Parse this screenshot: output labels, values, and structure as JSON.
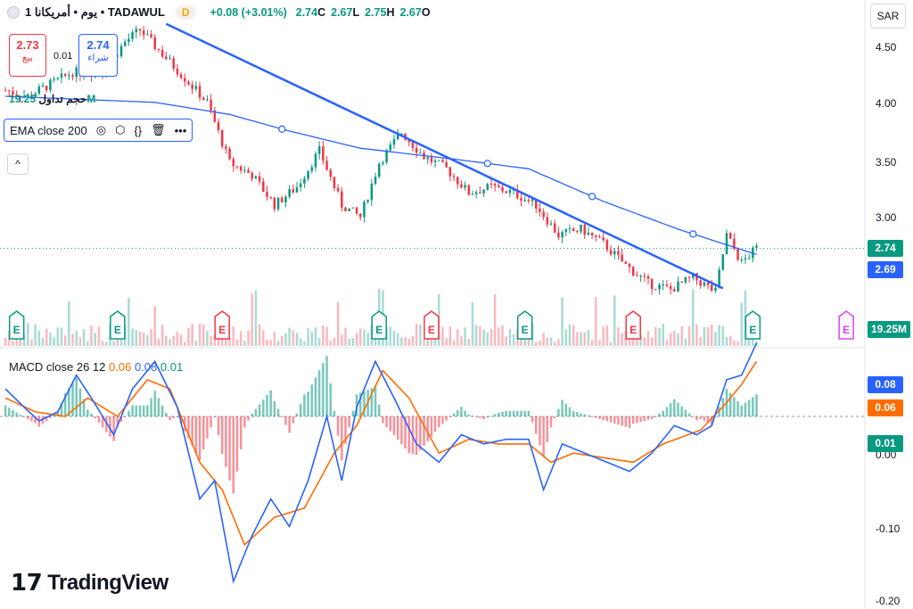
{
  "header": {
    "title": "يوم • أمريكانا 1 • TADAWUL",
    "interval_badge": "D",
    "change": "+0.08 (+3.01%)",
    "close_value": "2.74",
    "close_label": "C",
    "low_value": "2.67",
    "low_label": "L",
    "high_value": "2.75",
    "high_label": "H",
    "open_value": "2.67",
    "open_label": "O"
  },
  "trade": {
    "sell_price": "2.73",
    "sell_label": "بيع",
    "spread": "0.01",
    "buy_price": "2.74",
    "buy_label": "شراء"
  },
  "volume_legend": {
    "label": "حجم تداول",
    "value": "19.25M"
  },
  "ema_legend": {
    "label": "EMA close 200",
    "icons": [
      "eye-icon",
      "settings-icon",
      "code-icon",
      "trash-icon",
      "more-icon"
    ]
  },
  "collapse_icon": "chevron-up-icon",
  "currency": "SAR",
  "price_axis": {
    "ticks": [
      "4.50",
      "4.00",
      "3.50",
      "3.00"
    ]
  },
  "price_tags": {
    "last": "2.74",
    "ema": "2.69",
    "volume": "19.25M"
  },
  "macd_legend": {
    "label": "MACD close 26 12",
    "signal": "0.06",
    "macd": "0.08",
    "hist": "0.01"
  },
  "macd_axis": {
    "ticks": [
      "0.00",
      "-0.10",
      "-0.20"
    ]
  },
  "macd_tags": {
    "macd": "0.08",
    "signal": "0.06",
    "hist": "0.01"
  },
  "branding": {
    "name": "TradingView"
  },
  "colors": {
    "up": "#089981",
    "down": "#f23645",
    "ema": "#2962ff",
    "macd": "#2962ff",
    "signal": "#ff6d00",
    "earnings_past": "#089981",
    "earnings_miss": "#f23645",
    "earnings_future": "#e040fb"
  },
  "chart_data": {
    "type": "candlestick",
    "price_ylim": [
      2.25,
      4.65
    ],
    "close_path": [
      {
        "i": 0,
        "y": 4.05
      },
      {
        "i": 6,
        "y": 4.0
      },
      {
        "i": 12,
        "y": 4.1
      },
      {
        "i": 18,
        "y": 4.2
      },
      {
        "i": 26,
        "y": 4.2
      },
      {
        "i": 32,
        "y": 4.45
      },
      {
        "i": 36,
        "y": 4.55
      },
      {
        "i": 42,
        "y": 4.35
      },
      {
        "i": 48,
        "y": 4.15
      },
      {
        "i": 54,
        "y": 3.95
      },
      {
        "i": 60,
        "y": 3.45
      },
      {
        "i": 66,
        "y": 3.35
      },
      {
        "i": 72,
        "y": 3.1
      },
      {
        "i": 78,
        "y": 3.25
      },
      {
        "i": 84,
        "y": 3.55
      },
      {
        "i": 90,
        "y": 3.1
      },
      {
        "i": 95,
        "y": 3.0
      },
      {
        "i": 100,
        "y": 3.45
      },
      {
        "i": 106,
        "y": 3.7
      },
      {
        "i": 112,
        "y": 3.5
      },
      {
        "i": 118,
        "y": 3.4
      },
      {
        "i": 124,
        "y": 3.2
      },
      {
        "i": 130,
        "y": 3.25
      },
      {
        "i": 136,
        "y": 3.2
      },
      {
        "i": 142,
        "y": 3.1
      },
      {
        "i": 148,
        "y": 2.85
      },
      {
        "i": 154,
        "y": 2.9
      },
      {
        "i": 160,
        "y": 2.78
      },
      {
        "i": 166,
        "y": 2.6
      },
      {
        "i": 172,
        "y": 2.45
      },
      {
        "i": 178,
        "y": 2.4
      },
      {
        "i": 184,
        "y": 2.5
      },
      {
        "i": 190,
        "y": 2.38
      },
      {
        "i": 193,
        "y": 2.85
      },
      {
        "i": 197,
        "y": 2.62
      },
      {
        "i": 201,
        "y": 2.74
      }
    ],
    "ema200_path": [
      {
        "i": 0,
        "y": 4.0
      },
      {
        "i": 40,
        "y": 3.95
      },
      {
        "i": 60,
        "y": 3.85
      },
      {
        "i": 75,
        "y": 3.72
      },
      {
        "i": 95,
        "y": 3.57
      },
      {
        "i": 120,
        "y": 3.48
      },
      {
        "i": 140,
        "y": 3.4
      },
      {
        "i": 160,
        "y": 3.13
      },
      {
        "i": 180,
        "y": 2.9
      },
      {
        "i": 201,
        "y": 2.69
      }
    ],
    "trendline": {
      "from": {
        "i": 43,
        "y": 4.6
      },
      "to": {
        "i": 192,
        "y": 2.41
      }
    },
    "earnings_markers": [
      {
        "i": 3,
        "kind": "past"
      },
      {
        "i": 30,
        "kind": "past"
      },
      {
        "i": 58,
        "kind": "miss"
      },
      {
        "i": 100,
        "kind": "past"
      },
      {
        "i": 114,
        "kind": "miss"
      },
      {
        "i": 139,
        "kind": "past"
      },
      {
        "i": 168,
        "kind": "miss"
      },
      {
        "i": 200,
        "kind": "past"
      },
      {
        "i": 225,
        "kind": "future"
      }
    ],
    "macd_ylim": [
      -0.21,
      0.07
    ],
    "macd_path": [
      {
        "i": 0,
        "y": 0.03
      },
      {
        "i": 5,
        "y": 0.01
      },
      {
        "i": 9,
        "y": -0.005
      },
      {
        "i": 14,
        "y": 0.005
      },
      {
        "i": 19,
        "y": 0.045
      },
      {
        "i": 23,
        "y": 0.02
      },
      {
        "i": 29,
        "y": -0.02
      },
      {
        "i": 34,
        "y": 0.03
      },
      {
        "i": 40,
        "y": 0.06
      },
      {
        "i": 46,
        "y": 0.01
      },
      {
        "i": 52,
        "y": -0.09
      },
      {
        "i": 56,
        "y": -0.07
      },
      {
        "i": 61,
        "y": -0.18
      },
      {
        "i": 66,
        "y": -0.13
      },
      {
        "i": 71,
        "y": -0.09
      },
      {
        "i": 76,
        "y": -0.12
      },
      {
        "i": 81,
        "y": -0.07
      },
      {
        "i": 86,
        "y": 0.0
      },
      {
        "i": 90,
        "y": -0.07
      },
      {
        "i": 94,
        "y": 0.01
      },
      {
        "i": 99,
        "y": 0.06
      },
      {
        "i": 104,
        "y": 0.02
      },
      {
        "i": 110,
        "y": -0.03
      },
      {
        "i": 116,
        "y": -0.05
      },
      {
        "i": 122,
        "y": -0.02
      },
      {
        "i": 128,
        "y": -0.03
      },
      {
        "i": 134,
        "y": -0.025
      },
      {
        "i": 140,
        "y": -0.025
      },
      {
        "i": 144,
        "y": -0.08
      },
      {
        "i": 149,
        "y": -0.03
      },
      {
        "i": 155,
        "y": -0.04
      },
      {
        "i": 161,
        "y": -0.05
      },
      {
        "i": 167,
        "y": -0.06
      },
      {
        "i": 173,
        "y": -0.04
      },
      {
        "i": 179,
        "y": -0.01
      },
      {
        "i": 185,
        "y": -0.02
      },
      {
        "i": 189,
        "y": -0.01
      },
      {
        "i": 193,
        "y": 0.04
      },
      {
        "i": 197,
        "y": 0.045
      },
      {
        "i": 201,
        "y": 0.08
      }
    ],
    "signal_path": [
      {
        "i": 0,
        "y": 0.02
      },
      {
        "i": 8,
        "y": 0.005
      },
      {
        "i": 16,
        "y": 0.0
      },
      {
        "i": 22,
        "y": 0.02
      },
      {
        "i": 30,
        "y": 0.0
      },
      {
        "i": 38,
        "y": 0.04
      },
      {
        "i": 44,
        "y": 0.03
      },
      {
        "i": 52,
        "y": -0.05
      },
      {
        "i": 58,
        "y": -0.08
      },
      {
        "i": 64,
        "y": -0.14
      },
      {
        "i": 72,
        "y": -0.11
      },
      {
        "i": 80,
        "y": -0.1
      },
      {
        "i": 88,
        "y": -0.04
      },
      {
        "i": 94,
        "y": -0.01
      },
      {
        "i": 101,
        "y": 0.05
      },
      {
        "i": 108,
        "y": 0.02
      },
      {
        "i": 116,
        "y": -0.04
      },
      {
        "i": 124,
        "y": -0.025
      },
      {
        "i": 132,
        "y": -0.03
      },
      {
        "i": 140,
        "y": -0.03
      },
      {
        "i": 146,
        "y": -0.05
      },
      {
        "i": 152,
        "y": -0.04
      },
      {
        "i": 160,
        "y": -0.045
      },
      {
        "i": 168,
        "y": -0.05
      },
      {
        "i": 176,
        "y": -0.03
      },
      {
        "i": 186,
        "y": -0.015
      },
      {
        "i": 193,
        "y": 0.015
      },
      {
        "i": 197,
        "y": 0.035
      },
      {
        "i": 201,
        "y": 0.06
      }
    ]
  }
}
